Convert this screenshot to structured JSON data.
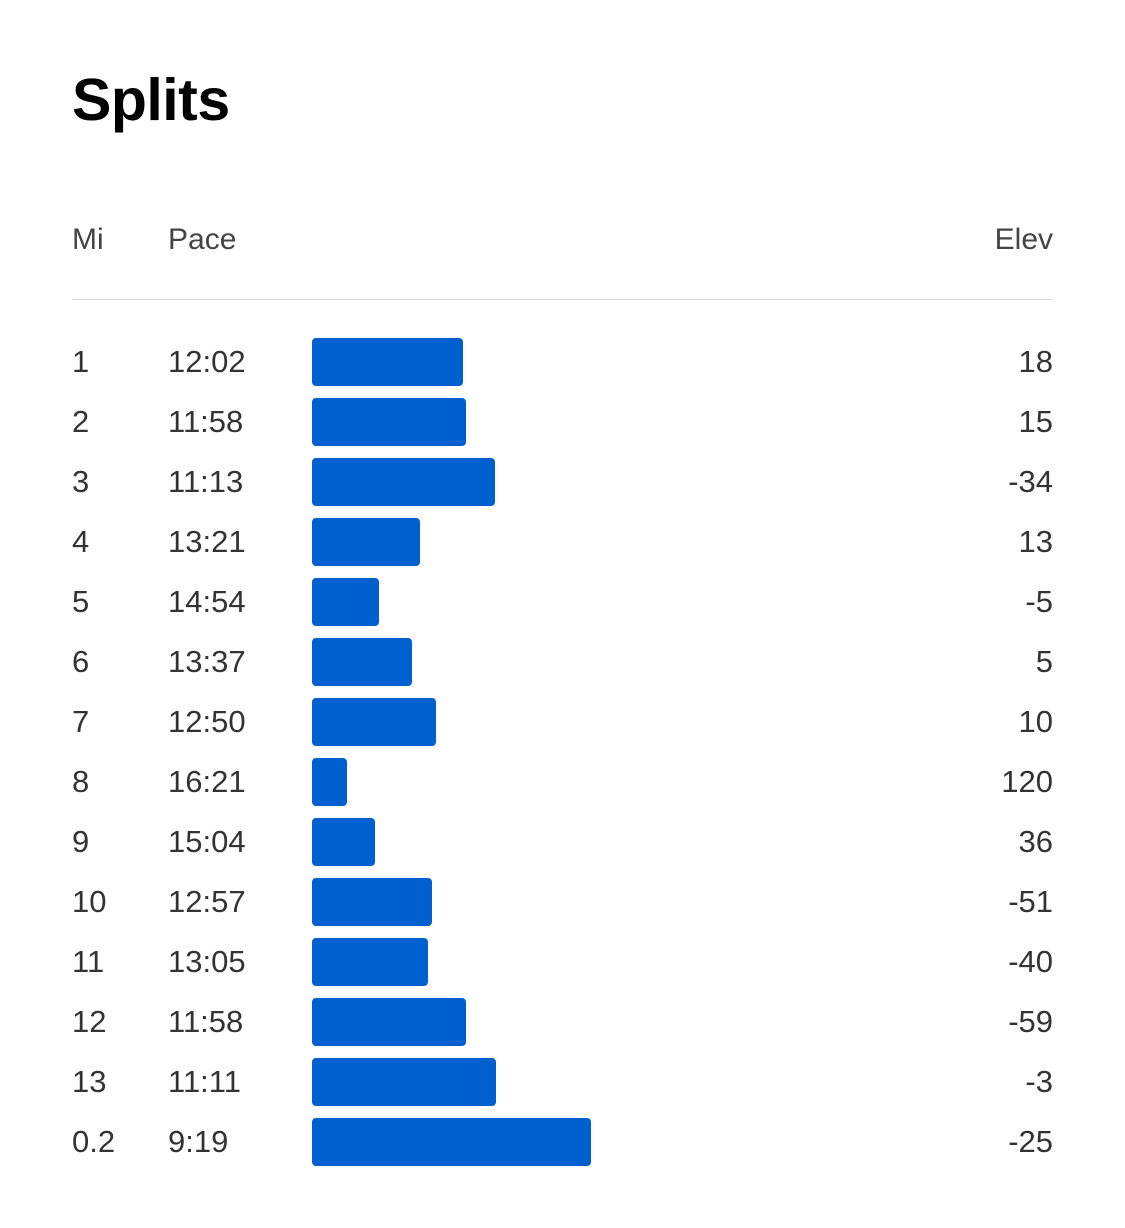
{
  "title": "Splits",
  "columns": {
    "mi": "Mi",
    "pace": "Pace",
    "elev": "Elev"
  },
  "colors": {
    "bar": "#0060d0",
    "title": "#000000",
    "text": "#333333",
    "divider": "#dcdcdc"
  },
  "splits": [
    {
      "mi": "1",
      "pace": "12:02",
      "elev": "18"
    },
    {
      "mi": "2",
      "pace": "11:58",
      "elev": "15"
    },
    {
      "mi": "3",
      "pace": "11:13",
      "elev": "-34"
    },
    {
      "mi": "4",
      "pace": "13:21",
      "elev": "13"
    },
    {
      "mi": "5",
      "pace": "14:54",
      "elev": "-5"
    },
    {
      "mi": "6",
      "pace": "13:37",
      "elev": "5"
    },
    {
      "mi": "7",
      "pace": "12:50",
      "elev": "10"
    },
    {
      "mi": "8",
      "pace": "16:21",
      "elev": "120"
    },
    {
      "mi": "9",
      "pace": "15:04",
      "elev": "36"
    },
    {
      "mi": "10",
      "pace": "12:57",
      "elev": "-51"
    },
    {
      "mi": "11",
      "pace": "13:05",
      "elev": "-40"
    },
    {
      "mi": "12",
      "pace": "11:58",
      "elev": "-59"
    },
    {
      "mi": "13",
      "pace": "11:11",
      "elev": "-3"
    },
    {
      "mi": "0.2",
      "pace": "9:19",
      "elev": "-25"
    }
  ]
}
